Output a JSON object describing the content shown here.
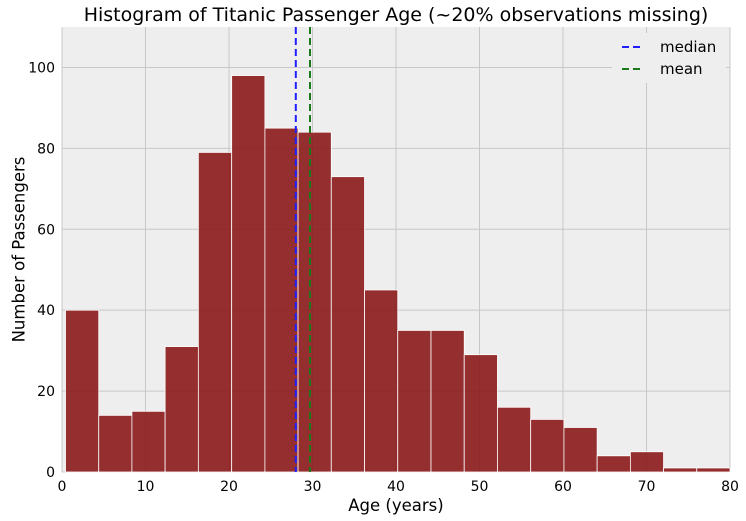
{
  "chart_data": {
    "type": "bar",
    "title": "Histogram of Titanic Passenger Age (~20% observations missing)",
    "xlabel": "Age (years)",
    "ylabel": "Number of Passengers",
    "xlim": [
      0,
      80
    ],
    "ylim": [
      0,
      110
    ],
    "xticks": [
      0,
      10,
      20,
      30,
      40,
      50,
      60,
      70,
      80
    ],
    "yticks": [
      0,
      20,
      40,
      60,
      80,
      100
    ],
    "grid": true,
    "legend_position": "top-right",
    "bins": {
      "edges": [
        0.42,
        4.4,
        8.37,
        12.35,
        16.33,
        20.32,
        24.3,
        28.27,
        32.25,
        36.23,
        40.21,
        44.19,
        48.17,
        52.15,
        56.13,
        60.11,
        64.09,
        68.07,
        72.04,
        76.02,
        80.0
      ],
      "values": [
        40,
        14,
        15,
        31,
        79,
        98,
        85,
        84,
        73,
        45,
        35,
        35,
        29,
        16,
        13,
        11,
        4,
        5,
        1,
        1
      ]
    },
    "vertical_lines": [
      {
        "name": "median",
        "x": 28.0,
        "style": "dashed",
        "color": "#1f1fff"
      },
      {
        "name": "mean",
        "x": 29.7,
        "style": "dashed",
        "color": "#1a7a1a"
      }
    ],
    "colors": {
      "bar_fill": "#8b1a1a",
      "bar_edge": "#ffffff",
      "plot_background": "#eeeeee",
      "grid": "#c8c8c8"
    }
  }
}
